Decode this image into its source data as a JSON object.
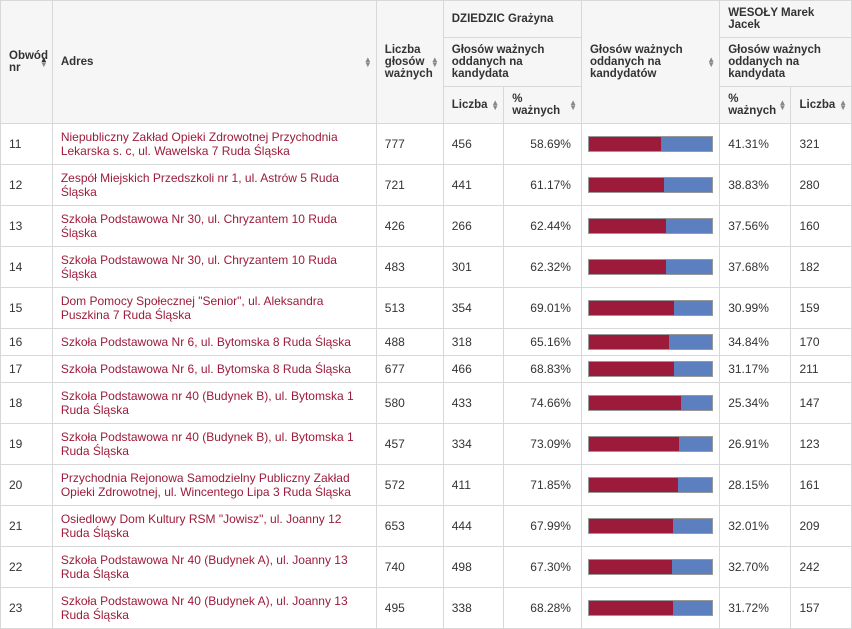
{
  "colors": {
    "link": "#9c1b3a",
    "bar_a": "#9c1b3a",
    "bar_b": "#5b7fbf",
    "border": "#d8d8d8",
    "header_bg": "#f6f6f6"
  },
  "headers": {
    "nr": "Obwód nr",
    "addr": "Adres",
    "valid": "Liczba głosów ważnych",
    "cand_a_name": "DZIEDZIC Grażyna",
    "cand_b_name": "WESOŁY Marek Jacek",
    "valid_for_cand": "Głosów ważnych oddanych na kandydata",
    "valid_for_cands": "Głosów ważnych oddanych na kandydatów",
    "count": "Liczba",
    "pct": "% ważnych"
  },
  "rows": [
    {
      "nr": "11",
      "addr": "Niepubliczny Zakład Opieki Zdrowotnej Przychodnia Lekarska s. c, ul. Wawelska 7 Ruda Śląska",
      "valid": "777",
      "a_count": "456",
      "a_pct": "58.69%",
      "a_pct_num": 58.69,
      "b_pct": "41.31%",
      "b_count": "321"
    },
    {
      "nr": "12",
      "addr": "Zespół Miejskich Przedszkoli nr 1, ul. Astrów 5 Ruda Śląska",
      "valid": "721",
      "a_count": "441",
      "a_pct": "61.17%",
      "a_pct_num": 61.17,
      "b_pct": "38.83%",
      "b_count": "280"
    },
    {
      "nr": "13",
      "addr": "Szkoła Podstawowa Nr 30, ul. Chryzantem 10 Ruda Śląska",
      "valid": "426",
      "a_count": "266",
      "a_pct": "62.44%",
      "a_pct_num": 62.44,
      "b_pct": "37.56%",
      "b_count": "160"
    },
    {
      "nr": "14",
      "addr": "Szkoła Podstawowa Nr 30, ul. Chryzantem 10 Ruda Śląska",
      "valid": "483",
      "a_count": "301",
      "a_pct": "62.32%",
      "a_pct_num": 62.32,
      "b_pct": "37.68%",
      "b_count": "182"
    },
    {
      "nr": "15",
      "addr": "Dom Pomocy Społecznej \"Senior\", ul. Aleksandra Puszkina 7 Ruda Śląska",
      "valid": "513",
      "a_count": "354",
      "a_pct": "69.01%",
      "a_pct_num": 69.01,
      "b_pct": "30.99%",
      "b_count": "159"
    },
    {
      "nr": "16",
      "addr": "Szkoła Podstawowa Nr 6, ul. Bytomska 8 Ruda Śląska",
      "valid": "488",
      "a_count": "318",
      "a_pct": "65.16%",
      "a_pct_num": 65.16,
      "b_pct": "34.84%",
      "b_count": "170"
    },
    {
      "nr": "17",
      "addr": "Szkoła Podstawowa Nr 6, ul. Bytomska 8 Ruda Śląska",
      "valid": "677",
      "a_count": "466",
      "a_pct": "68.83%",
      "a_pct_num": 68.83,
      "b_pct": "31.17%",
      "b_count": "211"
    },
    {
      "nr": "18",
      "addr": "Szkoła Podstawowa nr 40 (Budynek B), ul. Bytomska 1 Ruda Śląska",
      "valid": "580",
      "a_count": "433",
      "a_pct": "74.66%",
      "a_pct_num": 74.66,
      "b_pct": "25.34%",
      "b_count": "147"
    },
    {
      "nr": "19",
      "addr": "Szkoła Podstawowa nr 40 (Budynek B), ul. Bytomska 1 Ruda Śląska",
      "valid": "457",
      "a_count": "334",
      "a_pct": "73.09%",
      "a_pct_num": 73.09,
      "b_pct": "26.91%",
      "b_count": "123"
    },
    {
      "nr": "20",
      "addr": "Przychodnia Rejonowa Samodzielny Publiczny Zakład Opieki Zdrowotnej, ul. Wincentego Lipa 3 Ruda Śląska",
      "valid": "572",
      "a_count": "411",
      "a_pct": "71.85%",
      "a_pct_num": 71.85,
      "b_pct": "28.15%",
      "b_count": "161"
    },
    {
      "nr": "21",
      "addr": "Osiedlowy Dom Kultury RSM \"Jowisz\", ul. Joanny 12 Ruda Śląska",
      "valid": "653",
      "a_count": "444",
      "a_pct": "67.99%",
      "a_pct_num": 67.99,
      "b_pct": "32.01%",
      "b_count": "209"
    },
    {
      "nr": "22",
      "addr": "Szkoła Podstawowa Nr 40 (Budynek A), ul. Joanny 13 Ruda Śląska",
      "valid": "740",
      "a_count": "498",
      "a_pct": "67.30%",
      "a_pct_num": 67.3,
      "b_pct": "32.70%",
      "b_count": "242"
    },
    {
      "nr": "23",
      "addr": "Szkoła Podstawowa Nr 40 (Budynek A), ul. Joanny 13 Ruda Śląska",
      "valid": "495",
      "a_count": "338",
      "a_pct": "68.28%",
      "a_pct_num": 68.28,
      "b_pct": "31.72%",
      "b_count": "157"
    }
  ]
}
